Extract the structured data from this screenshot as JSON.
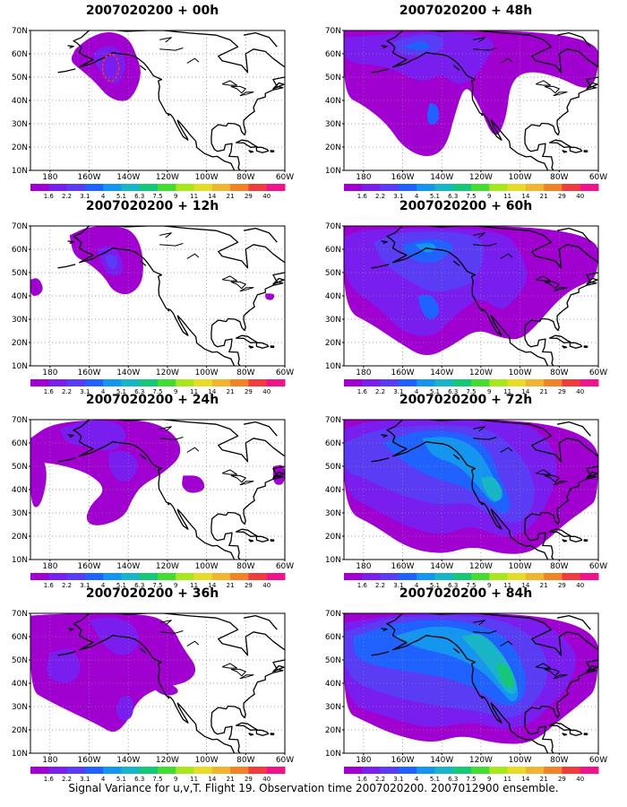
{
  "figure": {
    "footer": "Signal Variance for u,v,T. Flight 19. Observation time 2007020200. 2007012900 ensemble."
  },
  "axes": {
    "lat_labels": [
      "70N",
      "60N",
      "50N",
      "40N",
      "30N",
      "20N",
      "10N"
    ],
    "lon_labels": [
      "180",
      "160W",
      "140W",
      "120W",
      "100W",
      "80W",
      "60W"
    ]
  },
  "colorbar": {
    "levels": [
      "1.6",
      "2.2",
      "3.1",
      "4",
      "5.1",
      "6.3",
      "7.5",
      "9",
      "11",
      "14",
      "21",
      "29",
      "40"
    ],
    "colors": [
      "#a000d0",
      "#7a1ef0",
      "#5a3cf5",
      "#1f62ff",
      "#1496f0",
      "#18b4c8",
      "#14c878",
      "#44dc32",
      "#a8e61e",
      "#e6dc28",
      "#f0b430",
      "#f08228",
      "#f03c3c",
      "#f0148c"
    ]
  },
  "colors": {
    "level_1": "#a000d0",
    "level_2": "#7a1ef0",
    "level_3": "#5a3cf5",
    "level_4": "#1f62ff",
    "level_5": "#1496f0",
    "level_6": "#18b4c8",
    "level_7": "#14c878",
    "highlight_contour": "#ff3030",
    "coastline": "#000000",
    "grid": "#888888"
  },
  "panels": [
    {
      "id": "p00",
      "title": "2007020200 + 00h",
      "col": 0,
      "row": 0
    },
    {
      "id": "p12",
      "title": "2007020200 + 12h",
      "col": 0,
      "row": 1
    },
    {
      "id": "p24",
      "title": "2007020200 + 24h",
      "col": 0,
      "row": 2
    },
    {
      "id": "p36",
      "title": "2007020200 + 36h",
      "col": 0,
      "row": 3
    },
    {
      "id": "p48",
      "title": "2007020200 + 48h",
      "col": 1,
      "row": 0
    },
    {
      "id": "p60",
      "title": "2007020200 + 60h",
      "col": 1,
      "row": 1
    },
    {
      "id": "p72",
      "title": "2007020200 + 72h",
      "col": 1,
      "row": 2
    },
    {
      "id": "p84",
      "title": "2007020200 + 84h",
      "col": 1,
      "row": 3
    }
  ]
}
